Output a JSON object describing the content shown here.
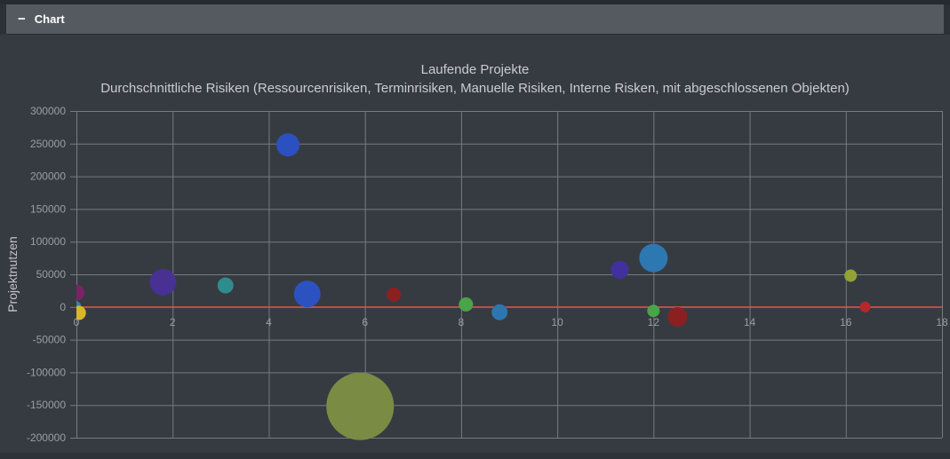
{
  "header": {
    "collapse_icon": "−",
    "title": "Chart"
  },
  "chart_data": {
    "type": "scatter",
    "subtype": "bubble",
    "title": "Laufende Projekte",
    "subtitle": "Durchschnittliche Risiken (Ressourcenrisiken, Terminrisiken, Manuelle Risiken, Interne Risken, mit abgeschlossenen Objekten)",
    "xlabel": "",
    "ylabel": "Projektnutzen",
    "xlim": [
      0,
      18
    ],
    "ylim": [
      -200000,
      300000
    ],
    "x_ticks": [
      0,
      2,
      4,
      6,
      8,
      10,
      12,
      14,
      16,
      18
    ],
    "y_ticks": [
      300000,
      250000,
      200000,
      150000,
      100000,
      50000,
      0,
      -50000,
      -100000,
      -150000,
      -200000
    ],
    "grid": true,
    "legend": "none",
    "zero_line_y": 0,
    "colors": {
      "background": "#363b42",
      "header_bar": "#555a61",
      "grid_line": "#757b83",
      "zero_line": "#e0504e",
      "tick_text": "#989ea6",
      "title_text": "#c9ccd0"
    },
    "points": [
      {
        "x": 0,
        "y": 22000,
        "r": 9,
        "color": "#7b2368"
      },
      {
        "x": 0,
        "y": 2000,
        "r": 5,
        "color": "#2d8a96"
      },
      {
        "x": 0.05,
        "y": -9000,
        "r": 8,
        "color": "#d9b826"
      },
      {
        "x": 1.8,
        "y": 38000,
        "r": 15,
        "color": "#483193"
      },
      {
        "x": 3.1,
        "y": 33000,
        "r": 9,
        "color": "#2e8c8c"
      },
      {
        "x": 4.4,
        "y": 248000,
        "r": 13,
        "color": "#2b50c0"
      },
      {
        "x": 4.8,
        "y": 20000,
        "r": 15,
        "color": "#2b52c0"
      },
      {
        "x": 5.9,
        "y": -152000,
        "r": 38,
        "color": "#7a8c44"
      },
      {
        "x": 6.6,
        "y": 19000,
        "r": 8,
        "color": "#8c2020"
      },
      {
        "x": 8.1,
        "y": 4000,
        "r": 8,
        "color": "#4aa44a"
      },
      {
        "x": 8.8,
        "y": -8000,
        "r": 9,
        "color": "#2d76b0"
      },
      {
        "x": 11.3,
        "y": 57000,
        "r": 10,
        "color": "#41309e"
      },
      {
        "x": 12,
        "y": 75000,
        "r": 16,
        "color": "#2d78b2"
      },
      {
        "x": 12,
        "y": -6000,
        "r": 7,
        "color": "#4aa44a"
      },
      {
        "x": 12.5,
        "y": -15000,
        "r": 11,
        "color": "#8c2020"
      },
      {
        "x": 16.1,
        "y": 48000,
        "r": 7,
        "color": "#93a135"
      },
      {
        "x": 16.4,
        "y": 0,
        "r": 6,
        "color": "#b52828"
      }
    ]
  }
}
